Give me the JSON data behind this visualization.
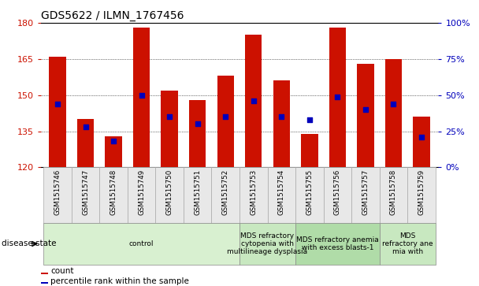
{
  "title": "GDS5622 / ILMN_1767456",
  "samples": [
    "GSM1515746",
    "GSM1515747",
    "GSM1515748",
    "GSM1515749",
    "GSM1515750",
    "GSM1515751",
    "GSM1515752",
    "GSM1515753",
    "GSM1515754",
    "GSM1515755",
    "GSM1515756",
    "GSM1515757",
    "GSM1515758",
    "GSM1515759"
  ],
  "counts": [
    166,
    140,
    133,
    178,
    152,
    148,
    158,
    175,
    156,
    134,
    178,
    163,
    165,
    141
  ],
  "percentile_ranks": [
    44,
    28,
    18,
    50,
    35,
    30,
    35,
    46,
    35,
    33,
    49,
    40,
    44,
    21
  ],
  "ylim_left": [
    120,
    180
  ],
  "ylim_right": [
    0,
    100
  ],
  "yticks_left": [
    120,
    135,
    150,
    165,
    180
  ],
  "yticks_right": [
    0,
    25,
    50,
    75,
    100
  ],
  "bar_color": "#cc1100",
  "marker_color": "#0000bb",
  "baseline": 120,
  "groups": [
    {
      "label": "control",
      "start": 0,
      "end": 6,
      "color": "#d8f0d0"
    },
    {
      "label": "MDS refractory\ncytopenia with\nmultilineage dysplasia",
      "start": 7,
      "end": 8,
      "color": "#c8e8c0"
    },
    {
      "label": "MDS refractory anemia\nwith excess blasts-1",
      "start": 9,
      "end": 11,
      "color": "#b0dca8"
    },
    {
      "label": "MDS\nrefractory ane\nmia with",
      "start": 12,
      "end": 13,
      "color": "#c8e8c0"
    }
  ],
  "disease_state_label": "disease state",
  "legend_count_label": "count",
  "legend_percentile_label": "percentile rank within the sample",
  "tick_color_left": "#cc1100",
  "tick_color_right": "#0000bb",
  "bg_color": "#e8e8e8"
}
